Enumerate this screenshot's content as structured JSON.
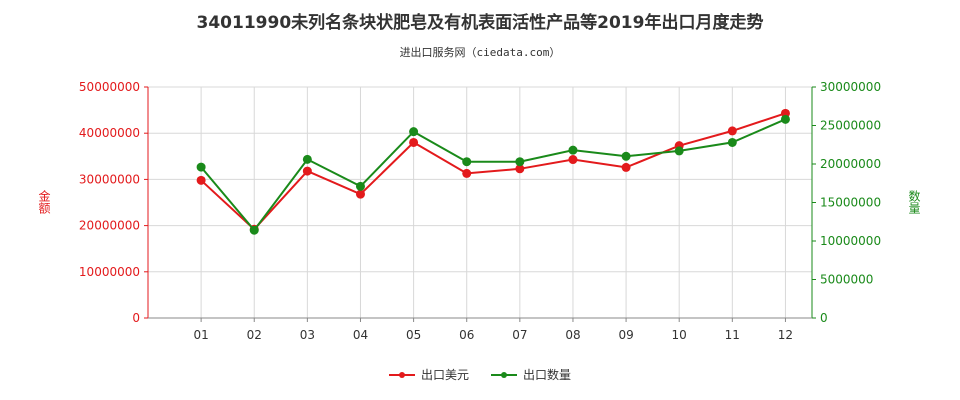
{
  "title": "34011990未列名条块状肥皂及有机表面活性产品等2019年出口月度走势",
  "subtitle": "进出口服务网（ciedata.com）",
  "colors": {
    "amount": "#e31a1c",
    "quantity": "#1a8a1a",
    "grid": "#d8d8d8",
    "axis": "#888888"
  },
  "chart_data": {
    "type": "line",
    "categories": [
      "01",
      "02",
      "03",
      "04",
      "05",
      "06",
      "07",
      "08",
      "09",
      "10",
      "11",
      "12"
    ],
    "left_axis": {
      "label": "金额",
      "ylim": [
        0,
        50000000
      ],
      "ticks": [
        "0",
        "10000000",
        "20000000",
        "30000000",
        "40000000",
        "50000000"
      ]
    },
    "right_axis": {
      "label": "数量",
      "ylim": [
        0,
        30000000
      ],
      "ticks": [
        "0",
        "5000000",
        "10000000",
        "15000000",
        "20000000",
        "25000000",
        "30000000"
      ]
    },
    "series": [
      {
        "name": "出口美元",
        "axis": "left",
        "values": [
          29800000,
          19200000,
          31800000,
          26800000,
          38000000,
          31300000,
          32300000,
          34300000,
          32600000,
          37300000,
          40500000,
          44300000
        ]
      },
      {
        "name": "出口数量",
        "axis": "right",
        "values": [
          19600000,
          11400000,
          20600000,
          17100000,
          24200000,
          20300000,
          20300000,
          21800000,
          21000000,
          21700000,
          22800000,
          25800000
        ]
      }
    ]
  }
}
